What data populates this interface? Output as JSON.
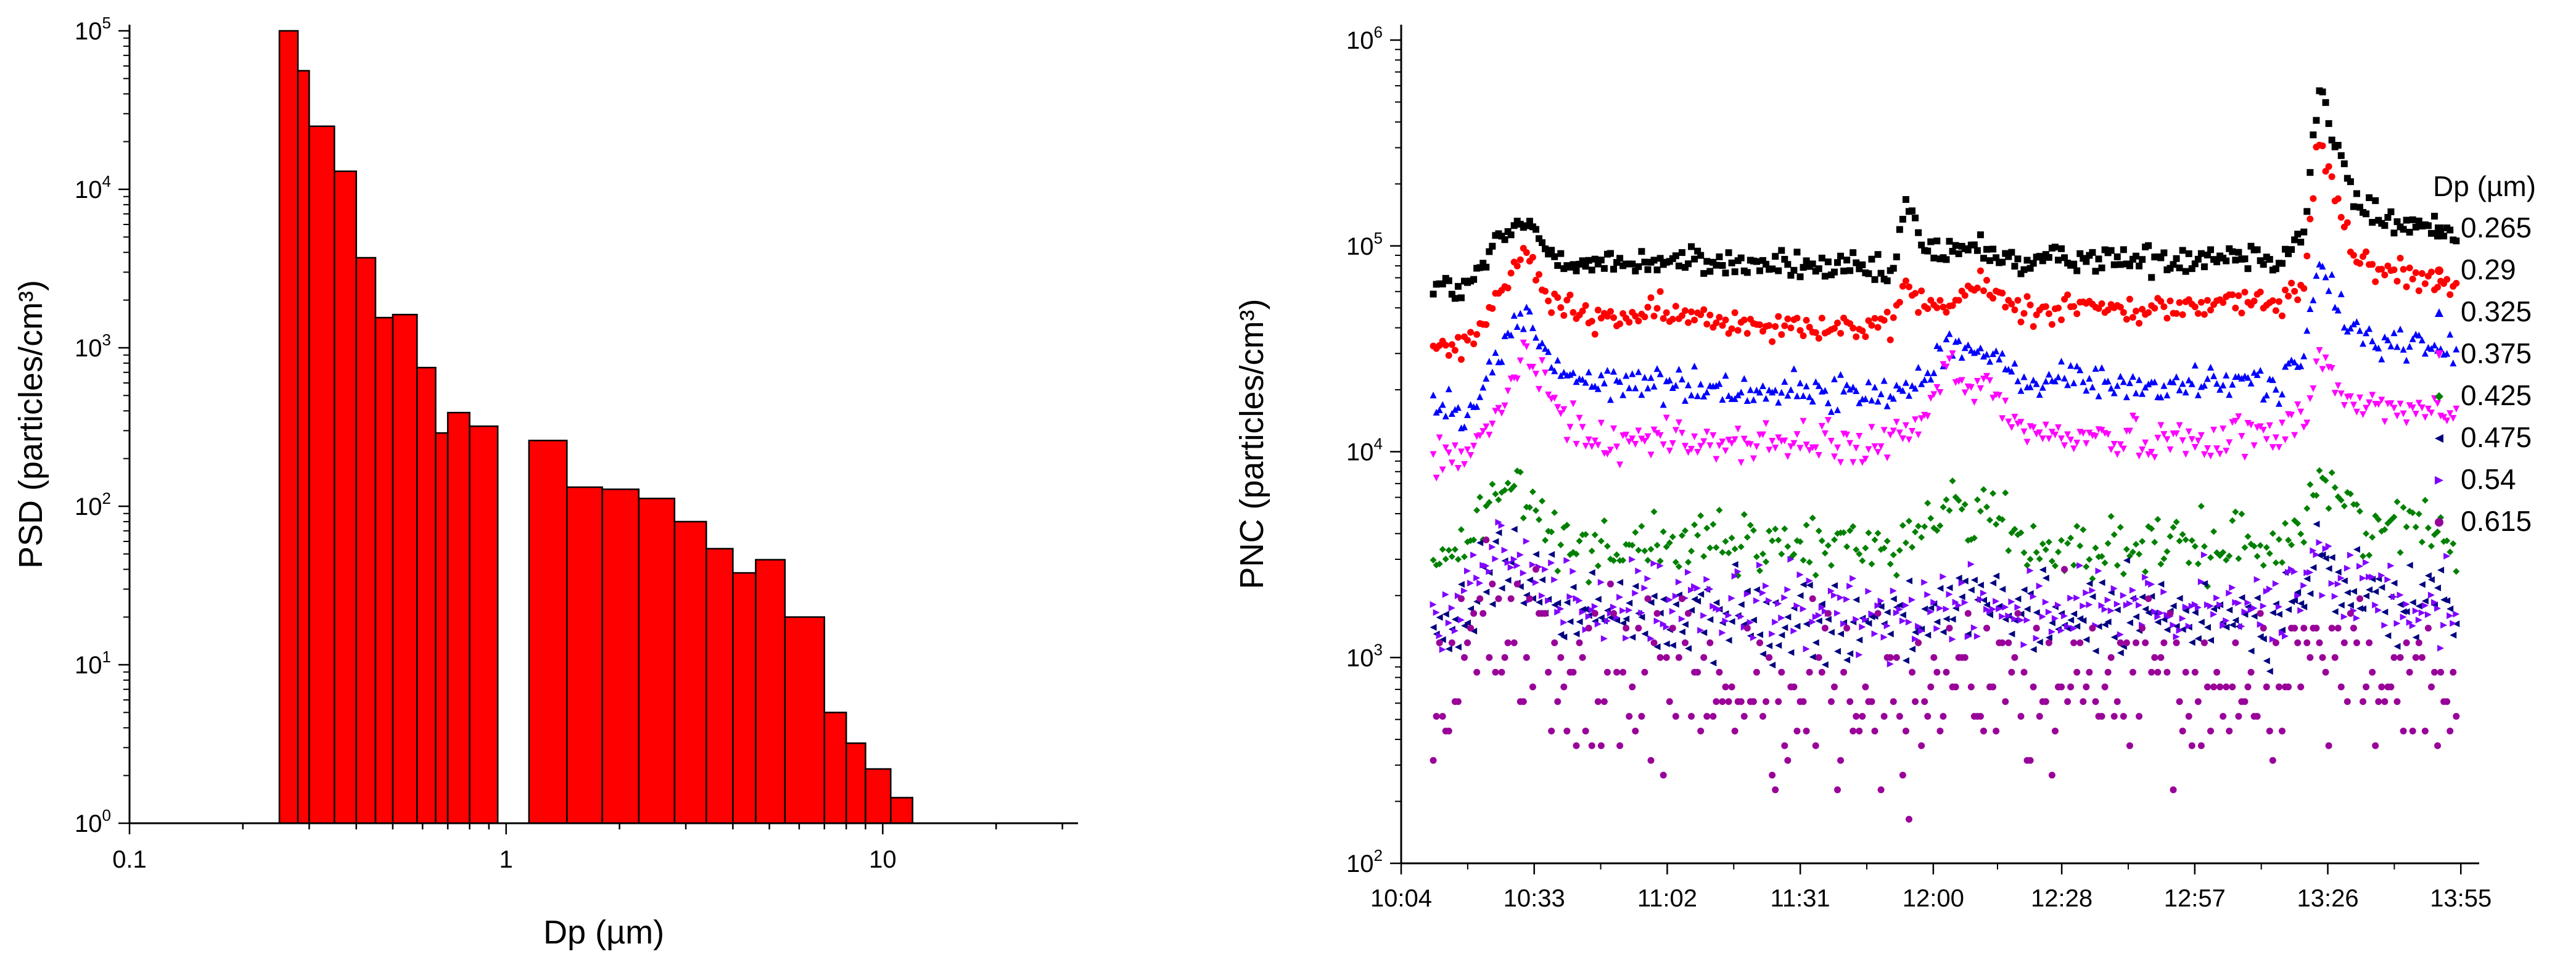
{
  "chart_data": [
    {
      "type": "bar",
      "xscale": "log",
      "yscale": "log",
      "xlim": [
        0.1,
        33
      ],
      "ylim": [
        1,
        100000
      ],
      "xlabel": "Dp (µm)",
      "ylabel": "PSD (particles/cm³)",
      "xticks": [
        {
          "value": 0.1,
          "label": "0.1"
        },
        {
          "value": 1,
          "label": "1"
        },
        {
          "value": 10,
          "label": "10"
        }
      ],
      "yticks": [
        {
          "value": 1,
          "base": "10",
          "exp": "0"
        },
        {
          "value": 10,
          "base": "10",
          "exp": "1"
        },
        {
          "value": 100,
          "base": "10",
          "exp": "2"
        },
        {
          "value": 1000,
          "base": "10",
          "exp": "3"
        },
        {
          "value": 10000,
          "base": "10",
          "exp": "4"
        },
        {
          "value": 100000,
          "base": "10",
          "exp": "5"
        }
      ],
      "bar_color": "#ff0000",
      "bars": [
        {
          "lo": 0.25,
          "hi": 0.28,
          "value": 100000
        },
        {
          "lo": 0.28,
          "hi": 0.3,
          "value": 56000
        },
        {
          "lo": 0.3,
          "hi": 0.35,
          "value": 25000
        },
        {
          "lo": 0.35,
          "hi": 0.4,
          "value": 13000
        },
        {
          "lo": 0.4,
          "hi": 0.45,
          "value": 3700
        },
        {
          "lo": 0.45,
          "hi": 0.5,
          "value": 1550
        },
        {
          "lo": 0.5,
          "hi": 0.58,
          "value": 1620
        },
        {
          "lo": 0.58,
          "hi": 0.65,
          "value": 750
        },
        {
          "lo": 0.65,
          "hi": 0.7,
          "value": 290
        },
        {
          "lo": 0.7,
          "hi": 0.8,
          "value": 390
        },
        {
          "lo": 0.8,
          "hi": 0.95,
          "value": 320
        },
        {
          "lo": 1.15,
          "hi": 1.45,
          "value": 260
        },
        {
          "lo": 1.45,
          "hi": 1.8,
          "value": 132
        },
        {
          "lo": 1.8,
          "hi": 2.25,
          "value": 128
        },
        {
          "lo": 2.25,
          "hi": 2.8,
          "value": 112
        },
        {
          "lo": 2.8,
          "hi": 3.4,
          "value": 80
        },
        {
          "lo": 3.4,
          "hi": 4.0,
          "value": 54
        },
        {
          "lo": 4.0,
          "hi": 4.6,
          "value": 38
        },
        {
          "lo": 4.6,
          "hi": 5.5,
          "value": 46
        },
        {
          "lo": 5.5,
          "hi": 7.0,
          "value": 20
        },
        {
          "lo": 7.0,
          "hi": 8.0,
          "value": 5
        },
        {
          "lo": 8.0,
          "hi": 9.0,
          "value": 3.2
        },
        {
          "lo": 9.0,
          "hi": 10.5,
          "value": 2.2
        },
        {
          "lo": 10.5,
          "hi": 12.0,
          "value": 1.45
        }
      ]
    },
    {
      "type": "scatter",
      "yscale": "log",
      "ylim": [
        100,
        1000000
      ],
      "xlim_minutes": [
        604,
        839
      ],
      "xlabel": "",
      "ylabel": "PNC (particles/cm³)",
      "xticks": [
        {
          "value": 604,
          "label": "10:04"
        },
        {
          "value": 633,
          "label": "10:33"
        },
        {
          "value": 662,
          "label": "11:02"
        },
        {
          "value": 691,
          "label": "11:31"
        },
        {
          "value": 720,
          "label": "12:00"
        },
        {
          "value": 748,
          "label": "12:28"
        },
        {
          "value": 777,
          "label": "12:57"
        },
        {
          "value": 806,
          "label": "13:26"
        },
        {
          "value": 835,
          "label": "13:55"
        }
      ],
      "yticks": [
        {
          "value": 100,
          "base": "10",
          "exp": "2"
        },
        {
          "value": 1000,
          "base": "10",
          "exp": "3"
        },
        {
          "value": 10000,
          "base": "10",
          "exp": "4"
        },
        {
          "value": 100000,
          "base": "10",
          "exp": "5"
        },
        {
          "value": 1000000,
          "base": "10",
          "exp": "6"
        }
      ],
      "time_range_minutes": [
        611,
        834
      ],
      "legend": {
        "title": "Dp (µm)",
        "position": "right"
      },
      "series": [
        {
          "name": "0.265",
          "color": "#000000",
          "marker": "square",
          "base": 82000,
          "noise": 0.05,
          "points": [
            [
              611,
              65000
            ],
            [
              618,
              60000
            ],
            [
              626,
              110000
            ],
            [
              631,
              130000
            ],
            [
              636,
              95000
            ],
            [
              645,
              80000
            ],
            [
              660,
              85000
            ],
            [
              675,
              82000
            ],
            [
              690,
              80000
            ],
            [
              705,
              76000
            ],
            [
              711,
              70000
            ],
            [
              714,
              160000
            ],
            [
              718,
              100000
            ],
            [
              724,
              90000
            ],
            [
              730,
              100000
            ],
            [
              740,
              80000
            ],
            [
              752,
              90000
            ],
            [
              760,
              85000
            ],
            [
              775,
              88000
            ],
            [
              785,
              92000
            ],
            [
              796,
              88000
            ],
            [
              801,
              120000
            ],
            [
              804,
              600000
            ],
            [
              807,
              350000
            ],
            [
              812,
              160000
            ],
            [
              820,
              130000
            ],
            [
              834,
              115000
            ]
          ]
        },
        {
          "name": "0.29",
          "color": "#ff0000",
          "marker": "circle",
          "base": 45000,
          "noise": 0.05,
          "points": [
            [
              611,
              35000
            ],
            [
              618,
              32000
            ],
            [
              626,
              60000
            ],
            [
              631,
              95000
            ],
            [
              636,
              55000
            ],
            [
              645,
              44000
            ],
            [
              660,
              47000
            ],
            [
              675,
              43000
            ],
            [
              690,
              42000
            ],
            [
              705,
              40000
            ],
            [
              711,
              38000
            ],
            [
              714,
              70000
            ],
            [
              718,
              50000
            ],
            [
              724,
              52000
            ],
            [
              730,
              65000
            ],
            [
              740,
              48000
            ],
            [
              752,
              52000
            ],
            [
              760,
              48000
            ],
            [
              775,
              50000
            ],
            [
              785,
              55000
            ],
            [
              796,
              50000
            ],
            [
              801,
              70000
            ],
            [
              804,
              350000
            ],
            [
              807,
              200000
            ],
            [
              812,
              90000
            ],
            [
              820,
              75000
            ],
            [
              834,
              65000
            ]
          ]
        },
        {
          "name": "0.325",
          "color": "#0000ff",
          "marker": "triangle-up",
          "base": 21000,
          "noise": 0.06,
          "points": [
            [
              611,
              17000
            ],
            [
              618,
              16000
            ],
            [
              626,
              30000
            ],
            [
              631,
              50000
            ],
            [
              636,
              28000
            ],
            [
              645,
              21000
            ],
            [
              660,
              22000
            ],
            [
              675,
              20000
            ],
            [
              690,
              20000
            ],
            [
              705,
              19000
            ],
            [
              711,
              19000
            ],
            [
              716,
              22000
            ],
            [
              724,
              35000
            ],
            [
              730,
              30000
            ],
            [
              740,
              22000
            ],
            [
              752,
              23000
            ],
            [
              760,
              21000
            ],
            [
              775,
              21000
            ],
            [
              785,
              22000
            ],
            [
              796,
              22000
            ],
            [
              801,
              30000
            ],
            [
              804,
              85000
            ],
            [
              807,
              55000
            ],
            [
              812,
              38000
            ],
            [
              820,
              34000
            ],
            [
              834,
              31000
            ]
          ]
        },
        {
          "name": "0.375",
          "color": "#ff00ff",
          "marker": "triangle-down",
          "base": 11000,
          "noise": 0.07,
          "points": [
            [
              611,
              9500
            ],
            [
              618,
              9000
            ],
            [
              626,
              16000
            ],
            [
              631,
              32000
            ],
            [
              636,
              18000
            ],
            [
              645,
              11500
            ],
            [
              660,
              11500
            ],
            [
              675,
              11000
            ],
            [
              690,
              11000
            ],
            [
              705,
              10500
            ],
            [
              716,
              12000
            ],
            [
              724,
              28000
            ],
            [
              728,
              18000
            ],
            [
              732,
              22000
            ],
            [
              740,
              12000
            ],
            [
              752,
              12000
            ],
            [
              760,
              11500
            ],
            [
              775,
              11500
            ],
            [
              785,
              12000
            ],
            [
              796,
              12000
            ],
            [
              801,
              16000
            ],
            [
              804,
              30000
            ],
            [
              808,
              20000
            ],
            [
              812,
              17000
            ],
            [
              820,
              16000
            ],
            [
              834,
              15000
            ]
          ]
        },
        {
          "name": "0.425",
          "color": "#008000",
          "marker": "diamond",
          "base": 3500,
          "noise": 0.1,
          "points": [
            [
              611,
              3000
            ],
            [
              618,
              3300
            ],
            [
              626,
              7000
            ],
            [
              631,
              6000
            ],
            [
              636,
              4200
            ],
            [
              645,
              3500
            ],
            [
              660,
              3600
            ],
            [
              675,
              3500
            ],
            [
              690,
              3500
            ],
            [
              705,
              3500
            ],
            [
              716,
              3800
            ],
            [
              724,
              6000
            ],
            [
              728,
              4500
            ],
            [
              732,
              5500
            ],
            [
              740,
              3500
            ],
            [
              752,
              3400
            ],
            [
              760,
              3300
            ],
            [
              775,
              3400
            ],
            [
              785,
              3600
            ],
            [
              796,
              3600
            ],
            [
              801,
              4500
            ],
            [
              804,
              8000
            ],
            [
              808,
              6000
            ],
            [
              812,
              4800
            ],
            [
              820,
              4400
            ],
            [
              834,
              4100
            ]
          ]
        },
        {
          "name": "0.475",
          "color": "#000080",
          "marker": "triangle-left",
          "base": 1600,
          "noise": 0.14,
          "points": [
            [
              611,
              1400
            ],
            [
              620,
              1800
            ],
            [
              626,
              3500
            ],
            [
              631,
              2500
            ],
            [
              640,
              1700
            ],
            [
              660,
              1600
            ],
            [
              690,
              1550
            ],
            [
              710,
              1500
            ],
            [
              724,
              1800
            ],
            [
              735,
              1600
            ],
            [
              760,
              1550
            ],
            [
              785,
              1600
            ],
            [
              800,
              1700
            ],
            [
              804,
              3200
            ],
            [
              810,
              2000
            ],
            [
              834,
              1700
            ]
          ]
        },
        {
          "name": "0.54",
          "color": "#8000ff",
          "marker": "triangle-right",
          "base": 1700,
          "noise": 0.14,
          "points": [
            [
              611,
              1500
            ],
            [
              620,
              2000
            ],
            [
              626,
              4000
            ],
            [
              631,
              2800
            ],
            [
              640,
              1900
            ],
            [
              660,
              1750
            ],
            [
              690,
              1700
            ],
            [
              710,
              1600
            ],
            [
              724,
              2000
            ],
            [
              735,
              1750
            ],
            [
              760,
              1700
            ],
            [
              785,
              1700
            ],
            [
              800,
              1800
            ],
            [
              804,
              3400
            ],
            [
              810,
              2200
            ],
            [
              834,
              1800
            ]
          ]
        },
        {
          "name": "0.615",
          "color": "#990099",
          "marker": "hexagon",
          "base": 700,
          "noise": 0.3,
          "points": [
            [
              611,
              800
            ],
            [
              626,
              1500
            ],
            [
              640,
              800
            ],
            [
              660,
              700
            ],
            [
              690,
              700
            ],
            [
              710,
              650
            ],
            [
              724,
              750
            ],
            [
              760,
              650
            ],
            [
              785,
              650
            ],
            [
              804,
              1100
            ],
            [
              834,
              700
            ]
          ]
        }
      ]
    }
  ]
}
